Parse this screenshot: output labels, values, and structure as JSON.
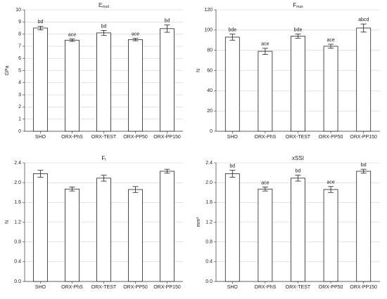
{
  "chart_data": [
    {
      "type": "bar",
      "title": "E",
      "title_sub": "mod",
      "ylabel": "GPa",
      "categories": [
        "SHO",
        "ORX-PhS",
        "ORX-TEST",
        "ORX-PP50",
        "ORX-PP150"
      ],
      "values": [
        8.5,
        7.5,
        8.1,
        7.55,
        8.45
      ],
      "errors": [
        0.15,
        0.1,
        0.2,
        0.1,
        0.3
      ],
      "annotations": [
        "bd",
        "ace",
        "bd",
        "ace",
        "bd"
      ],
      "ylim": [
        0,
        10
      ],
      "yticks": [
        0,
        1,
        2,
        3,
        4,
        5,
        6,
        7,
        8,
        9,
        10
      ],
      "grid": true,
      "color": "#ffffff"
    },
    {
      "type": "bar",
      "title": "F",
      "title_sub": "max",
      "ylabel": "N",
      "categories": [
        "SHO",
        "ORX-PhS",
        "ORX-TEST",
        "ORX-PP50",
        "ORX-PP150"
      ],
      "values": [
        93,
        79,
        94,
        84,
        102
      ],
      "errors": [
        3,
        3,
        2,
        2,
        4
      ],
      "annotations": [
        "bde",
        "ace",
        "bde",
        "ace",
        "abcd"
      ],
      "ylim": [
        0,
        120
      ],
      "yticks": [
        0,
        20,
        40,
        60,
        80,
        100,
        120
      ],
      "grid": true,
      "color": "#ffffff"
    },
    {
      "type": "bar",
      "title": "F",
      "title_sub": "t",
      "ylabel": "N",
      "categories": [
        "SHO",
        "ORX-PhS",
        "ORX-TEST",
        "ORX-PP50",
        "ORX-PP150"
      ],
      "values": [
        2.18,
        1.87,
        2.09,
        1.86,
        2.23
      ],
      "errors": [
        0.07,
        0.04,
        0.06,
        0.06,
        0.04
      ],
      "ylim": [
        0,
        2.4
      ],
      "yticks": [
        {
          "value": 0,
          "label": "0.0"
        },
        0.4,
        0.8,
        1.2,
        1.6,
        {
          "value": 2,
          "label": "2.0"
        },
        2.4
      ],
      "grid": true,
      "color": "#ffffff"
    },
    {
      "type": "bar",
      "title": "xSSI",
      "ylabel": "mm³",
      "categories": [
        "SHO",
        "ORX-PhS",
        "ORX-TEST",
        "ORX-PP50",
        "ORX-PP150"
      ],
      "values": [
        2.18,
        1.87,
        2.09,
        1.86,
        2.23
      ],
      "errors": [
        0.07,
        0.04,
        0.06,
        0.06,
        0.04
      ],
      "annotations": [
        "bd",
        "ace",
        "bd",
        "ace",
        "bd"
      ],
      "ylim": [
        0,
        2.4
      ],
      "yticks": [
        {
          "value": 0,
          "label": "0.0"
        },
        0.4,
        0.8,
        1.2,
        1.6,
        {
          "value": 2,
          "label": "2.0"
        },
        2.4
      ],
      "grid": true,
      "color": "#ffffff"
    }
  ]
}
